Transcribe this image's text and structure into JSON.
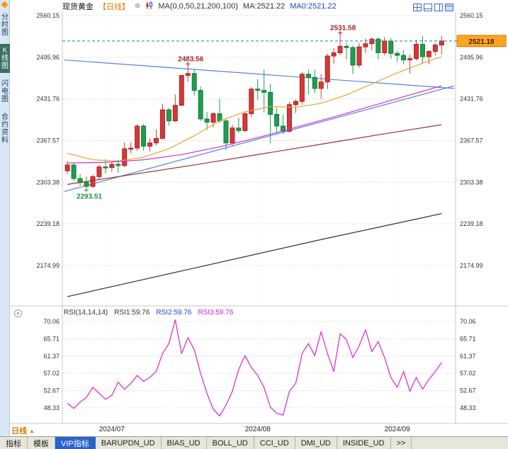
{
  "app": {
    "title": "现货黄金 日线 K线图"
  },
  "colors": {
    "up": "#d03a3a",
    "up_border": "#b02020",
    "down": "#1f9d4f",
    "down_border": "#157a38",
    "ma21": "#f0a030",
    "ma50": "#cc33cc",
    "ma100": "#993333",
    "ma200": "#333333",
    "trendline": "#5b7fe0",
    "rsi": "#dd22cc",
    "current_line": "#0b8f8f",
    "price_box_bg": "#ffa520",
    "price_box_border": "#cc7700",
    "annotation_high": "#aa2222",
    "annotation_low": "#1f8f3f",
    "grid": "#dcdcdc",
    "axis_text": "#333333"
  },
  "header": {
    "symbol": "现货黄金",
    "period_tag": "【日线】",
    "expand_icon": "⊕",
    "ma_params": "MA(0,0,50,21,200,100)",
    "ma_value": "MA:2521.22",
    "ma0_value": "MA0:2521.22"
  },
  "sidebar": {
    "tabs": [
      {
        "label": "分时图",
        "active": false
      },
      {
        "label": "K线图",
        "active": true
      },
      {
        "label": "闪电图",
        "active": false
      },
      {
        "label": "合约资料",
        "active": false
      }
    ]
  },
  "period_selector": {
    "label": "日线",
    "arrow": "▲"
  },
  "rsi_header": {
    "params": "RSI(14,14,14)",
    "rsi1": "RSI1:59.76",
    "rsi2": "RSI2:59.76",
    "rsi3": "RSI3:59.76"
  },
  "bottom_tabs": {
    "items": [
      {
        "label": "指标",
        "active": false
      },
      {
        "label": "模板",
        "active": false
      },
      {
        "label": "VIP指标",
        "active": true
      },
      {
        "label": "BARUPDN_UD",
        "active": false
      },
      {
        "label": "BIAS_UD",
        "active": false
      },
      {
        "label": "BOLL_UD",
        "active": false
      },
      {
        "label": "CCI_UD",
        "active": false
      },
      {
        "label": "DMI_UD",
        "active": false
      },
      {
        "label": "INSIDE_UD",
        "active": false
      },
      {
        "label": ">>",
        "active": false
      }
    ]
  },
  "chart_data": [
    {
      "type": "candlestick",
      "title": "现货黄金【日线】",
      "y_ticks": [
        2560.15,
        2495.96,
        2431.76,
        2367.57,
        2303.38,
        2239.18,
        2174.99
      ],
      "axis": {
        "top_value": 2562.5,
        "bottom_value": 2117.0
      },
      "x_ticks": [
        {
          "index": 7,
          "label": "2024/07"
        },
        {
          "index": 30,
          "label": "2024/08"
        },
        {
          "index": 52,
          "label": "2024/09"
        }
      ],
      "current_price": 2521.18,
      "candles": [
        [
          2321,
          2336,
          2316,
          2330
        ],
        [
          2330,
          2334,
          2305,
          2309
        ],
        [
          2309,
          2316,
          2298,
          2303
        ],
        [
          2303,
          2312,
          2293.51,
          2297
        ],
        [
          2297,
          2315,
          2295,
          2312
        ],
        [
          2312,
          2330,
          2308,
          2327
        ],
        [
          2327,
          2339,
          2317,
          2326
        ],
        [
          2326,
          2334,
          2319,
          2331
        ],
        [
          2331,
          2338,
          2318,
          2329
        ],
        [
          2329,
          2365,
          2327,
          2355
        ],
        [
          2355,
          2365,
          2348,
          2356
        ],
        [
          2356,
          2393,
          2352,
          2390
        ],
        [
          2390,
          2393,
          2352,
          2359
        ],
        [
          2359,
          2371,
          2351,
          2364
        ],
        [
          2364,
          2385,
          2360,
          2371
        ],
        [
          2371,
          2424,
          2370,
          2415
        ],
        [
          2415,
          2418,
          2391,
          2398
        ],
        [
          2398,
          2439,
          2396,
          2422
        ],
        [
          2422,
          2469,
          2421,
          2468
        ],
        [
          2468,
          2483.56,
          2458,
          2471
        ],
        [
          2471,
          2478,
          2437,
          2445
        ],
        [
          2445,
          2451,
          2398,
          2401
        ],
        [
          2401,
          2412,
          2384,
          2396
        ],
        [
          2396,
          2412,
          2388,
          2409
        ],
        [
          2409,
          2432,
          2395,
          2398
        ],
        [
          2398,
          2402,
          2353,
          2364
        ],
        [
          2364,
          2392,
          2360,
          2387
        ],
        [
          2387,
          2403,
          2379,
          2383
        ],
        [
          2383,
          2412,
          2381,
          2409
        ],
        [
          2409,
          2450,
          2404,
          2447
        ],
        [
          2447,
          2462,
          2430,
          2445
        ],
        [
          2445,
          2477,
          2411,
          2442
        ],
        [
          2442,
          2455,
          2364,
          2408
        ],
        [
          2408,
          2418,
          2379,
          2390
        ],
        [
          2390,
          2407,
          2378,
          2382
        ],
        [
          2382,
          2427,
          2380,
          2423
        ],
        [
          2423,
          2431,
          2410,
          2428
        ],
        [
          2428,
          2473,
          2423,
          2470
        ],
        [
          2470,
          2477,
          2439,
          2465
        ],
        [
          2465,
          2477,
          2441,
          2448
        ],
        [
          2448,
          2470,
          2432,
          2458
        ],
        [
          2458,
          2502,
          2447,
          2498
        ],
        [
          2498,
          2510,
          2486,
          2503
        ],
        [
          2503,
          2531.58,
          2499,
          2513
        ],
        [
          2513,
          2518,
          2493,
          2511
        ],
        [
          2511,
          2514,
          2470,
          2484
        ],
        [
          2484,
          2518,
          2480,
          2512
        ],
        [
          2512,
          2525,
          2503,
          2517
        ],
        [
          2517,
          2527,
          2507,
          2524
        ],
        [
          2524,
          2527,
          2493,
          2503
        ],
        [
          2503,
          2527,
          2499,
          2521
        ],
        [
          2521,
          2526,
          2494,
          2502
        ],
        [
          2502,
          2506,
          2489,
          2499
        ],
        [
          2499,
          2507,
          2485,
          2492
        ],
        [
          2492,
          2500,
          2471,
          2494
        ],
        [
          2494,
          2523,
          2491,
          2516
        ],
        [
          2516,
          2529,
          2486,
          2497
        ],
        [
          2497,
          2507,
          2485,
          2505
        ],
        [
          2505,
          2518,
          2499,
          2515
        ],
        [
          2515,
          2529,
          2500,
          2521.18
        ]
      ],
      "ma_overlays": [
        {
          "name": "MA21",
          "color_key": "ma21",
          "points": [
            [
              0,
              2348
            ],
            [
              4,
              2338
            ],
            [
              8,
              2336
            ],
            [
              12,
              2342
            ],
            [
              16,
              2355
            ],
            [
              20,
              2375
            ],
            [
              24,
              2398
            ],
            [
              28,
              2412
            ],
            [
              32,
              2420
            ],
            [
              36,
              2419
            ],
            [
              40,
              2425
            ],
            [
              44,
              2438
            ],
            [
              48,
              2455
            ],
            [
              52,
              2472
            ],
            [
              56,
              2487
            ],
            [
              59,
              2497
            ]
          ]
        },
        {
          "name": "MA50",
          "color_key": "ma50",
          "points": [
            [
              0,
              2333
            ],
            [
              6,
              2334
            ],
            [
              12,
              2338
            ],
            [
              18,
              2346
            ],
            [
              24,
              2358
            ],
            [
              30,
              2372
            ],
            [
              36,
              2388
            ],
            [
              42,
              2404
            ],
            [
              48,
              2421
            ],
            [
              54,
              2438
            ],
            [
              59,
              2452
            ]
          ]
        },
        {
          "name": "MA100",
          "color_key": "ma100",
          "points": [
            [
              0,
              2300
            ],
            [
              10,
              2315
            ],
            [
              20,
              2330
            ],
            [
              30,
              2346
            ],
            [
              40,
              2362
            ],
            [
              50,
              2378
            ],
            [
              59,
              2392
            ]
          ]
        },
        {
          "name": "MA200",
          "color_key": "ma200",
          "points": [
            [
              0,
              2127
            ],
            [
              10,
              2149
            ],
            [
              20,
              2171
            ],
            [
              30,
              2193
            ],
            [
              40,
              2215
            ],
            [
              50,
              2236
            ],
            [
              59,
              2255
            ]
          ]
        }
      ],
      "trendlines": [
        {
          "points": [
            [
              -0.5,
              2492
            ],
            [
              61,
              2448
            ]
          ],
          "color_key": "trendline"
        },
        {
          "points": [
            [
              -0.5,
              2289
            ],
            [
              61,
              2452
            ]
          ],
          "color_key": "trendline"
        }
      ],
      "annotations": [
        {
          "index": 43,
          "value": 2531.58,
          "label": "2531.58",
          "color_key": "annotation_high",
          "placement": "above"
        },
        {
          "index": 19,
          "value": 2483.56,
          "label": "2483.56",
          "color_key": "annotation_high",
          "placement": "above"
        },
        {
          "index": 3,
          "value": 2293.51,
          "label": "2293.51",
          "color_key": "annotation_low",
          "placement": "below"
        }
      ]
    },
    {
      "type": "line",
      "name": "RSI(14,14,14)",
      "color_key": "rsi",
      "y_ticks": [
        70.06,
        65.71,
        61.37,
        57.02,
        52.67,
        48.33
      ],
      "axis": {
        "top_value": 71.13,
        "bottom_value": 44.4
      },
      "values": [
        49.5,
        48.2,
        49.8,
        51.0,
        53.5,
        52.0,
        50.5,
        51.5,
        54.8,
        53.0,
        54.5,
        56.5,
        55.0,
        56.0,
        57.5,
        62.0,
        64.5,
        70.5,
        62.0,
        66.0,
        63.0,
        57.0,
        52.0,
        48.0,
        46.3,
        49.0,
        52.5,
        58.0,
        61.5,
        58.5,
        56.5,
        53.5,
        48.5,
        47.0,
        46.5,
        52.5,
        54.5,
        62.0,
        64.5,
        61.5,
        67.5,
        62.0,
        57.5,
        67.0,
        65.5,
        61.0,
        64.0,
        68.0,
        62.5,
        65.0,
        61.0,
        56.0,
        53.5,
        57.5,
        52.5,
        56.0,
        53.0,
        55.5,
        57.5,
        59.76
      ]
    }
  ]
}
